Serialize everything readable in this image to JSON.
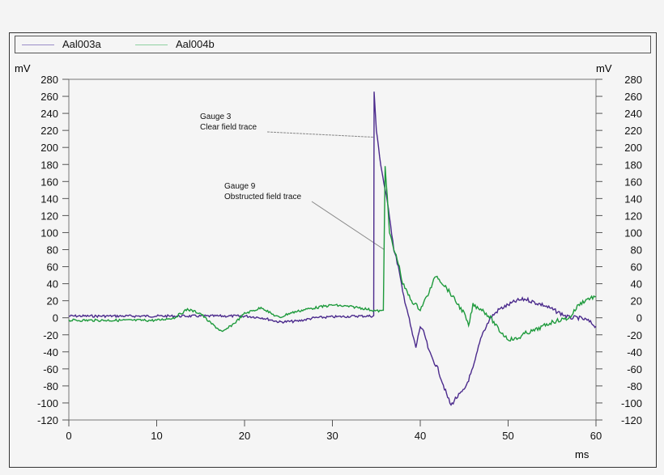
{
  "chart_data": {
    "type": "line",
    "xlabel": "ms",
    "ylabel_left": "mV",
    "ylabel_right": "mV",
    "xlim": [
      0,
      60
    ],
    "ylim": [
      -120,
      280
    ],
    "xticks": [
      0,
      10,
      20,
      30,
      40,
      50,
      60
    ],
    "yticks": [
      -120,
      -100,
      -80,
      -60,
      -40,
      -20,
      0,
      20,
      40,
      60,
      80,
      100,
      120,
      140,
      160,
      180,
      200,
      220,
      240,
      260,
      280
    ],
    "grid": false,
    "legend_position": "top",
    "series": [
      {
        "name": "Aal003a",
        "color": "#4b2a8c",
        "x": [
          0,
          5,
          10,
          15,
          18,
          20,
          22,
          24,
          26,
          28,
          30,
          33,
          34.7,
          34.75,
          35,
          35.5,
          36,
          36.5,
          37,
          37.5,
          38,
          38.5,
          39,
          39.5,
          40,
          40.5,
          41,
          42,
          43,
          43.5,
          44,
          45,
          46,
          47,
          48,
          49,
          50,
          51,
          52,
          53,
          54,
          55,
          56,
          57,
          58,
          59,
          60
        ],
        "y": [
          2,
          2,
          2,
          2,
          2,
          2,
          0,
          -5,
          -4,
          0,
          1,
          2,
          2,
          265,
          220,
          180,
          150,
          120,
          80,
          60,
          30,
          10,
          -15,
          -35,
          -10,
          -20,
          -40,
          -60,
          -90,
          -103,
          -95,
          -85,
          -60,
          -20,
          0,
          10,
          15,
          20,
          22,
          18,
          15,
          10,
          5,
          0,
          0,
          -3,
          -10
        ]
      },
      {
        "name": "Aal004b",
        "color": "#1e9a3c",
        "x": [
          0,
          5,
          10,
          12,
          13.5,
          15,
          16,
          17.5,
          19,
          20,
          22,
          23,
          24,
          25,
          27,
          30,
          33,
          35,
          35.8,
          36,
          36.5,
          37,
          37.5,
          38,
          39,
          40,
          41,
          41.8,
          43,
          44,
          45,
          45.5,
          46,
          47,
          48,
          49,
          50,
          51,
          52,
          53,
          54,
          55,
          57,
          58,
          59,
          60
        ],
        "y": [
          -3,
          -3,
          -3,
          0,
          10,
          5,
          -5,
          -17,
          -5,
          5,
          12,
          5,
          0,
          5,
          10,
          15,
          12,
          8,
          8,
          180,
          100,
          80,
          65,
          40,
          20,
          10,
          30,
          50,
          35,
          20,
          5,
          -10,
          15,
          10,
          0,
          -15,
          -25,
          -25,
          -18,
          -15,
          -10,
          -5,
          0,
          15,
          22,
          25
        ]
      }
    ],
    "annotations": [
      {
        "lines": [
          "Gauge 3",
          "Clear field trace"
        ],
        "points_to": [
          34.8,
          212
        ]
      },
      {
        "lines": [
          "Gauge 9",
          "Obstructed field trace"
        ],
        "points_to": [
          35.9,
          80
        ]
      }
    ]
  }
}
